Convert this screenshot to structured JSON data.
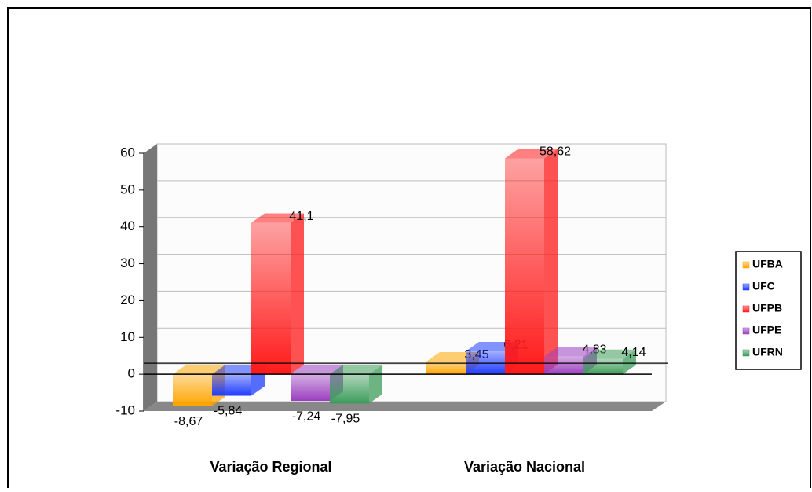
{
  "chart_data": {
    "type": "bar3d",
    "categories": [
      "Variação Regional",
      "Variação Nacional"
    ],
    "series": [
      {
        "name": "UFBA",
        "color": "#ffa500",
        "values": [
          -8.67,
          3.45
        ],
        "value_labels": [
          "-8,67",
          "3,45"
        ]
      },
      {
        "name": "UFC",
        "color": "#1f3cff",
        "values": [
          -5.84,
          6.21
        ],
        "value_labels": [
          "-5,84",
          "6,21"
        ]
      },
      {
        "name": "UFPB",
        "color": "#ff1a1a",
        "values": [
          41.1,
          58.62
        ],
        "value_labels": [
          "41,1",
          "58,62"
        ]
      },
      {
        "name": "UFPE",
        "color": "#9b3fc0",
        "values": [
          -7.24,
          4.83
        ],
        "value_labels": [
          "-7,24",
          "4,83"
        ]
      },
      {
        "name": "UFRN",
        "color": "#3c9c5a",
        "values": [
          -7.95,
          4.14
        ],
        "value_labels": [
          "-7,95",
          "4,14"
        ]
      }
    ],
    "ylim": [
      -10,
      60
    ],
    "yticks": [
      -10,
      0,
      10,
      20,
      30,
      40,
      50,
      60
    ],
    "grid": true,
    "legend": "right"
  }
}
